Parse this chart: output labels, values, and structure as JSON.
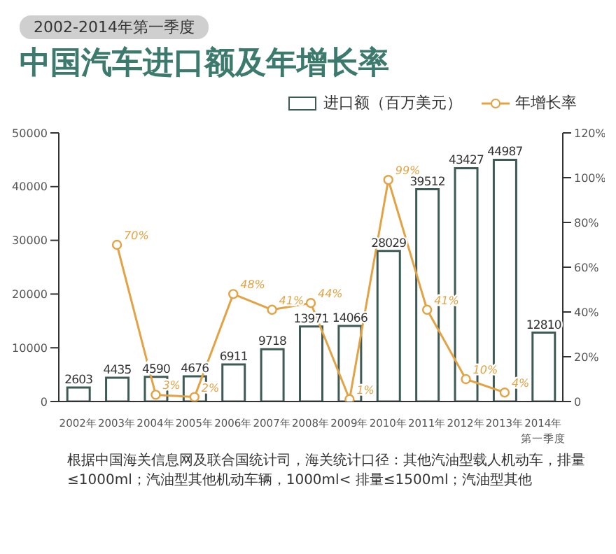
{
  "chart_data": {
    "type": "bar",
    "title": "中国汽车进口额及年增长率",
    "subtitle": "2002-2014年第一季度",
    "categories": [
      "2002年",
      "2003年",
      "2004年",
      "2005年",
      "2006年",
      "2007年",
      "2008年",
      "2009年",
      "2010年",
      "2011年",
      "2012年",
      "2013年",
      "2014年第一季度"
    ],
    "series": [
      {
        "name": "进口额（百万美元）",
        "color": "#3d5a55",
        "values": [
          2603,
          4435,
          4590,
          4676,
          6911,
          9718,
          13971,
          14066,
          28029,
          39512,
          43427,
          44987,
          12810
        ],
        "value_labels": [
          "2603",
          "4435",
          "4590",
          "4676",
          "6911",
          "9718",
          "13971",
          "14066",
          "28029",
          "39512",
          "43427",
          "44987",
          "12810"
        ]
      },
      {
        "name": "年增长率",
        "type": "line",
        "axis": "y2",
        "color": "#e3a344",
        "values": [
          null,
          70,
          3,
          2,
          48,
          41,
          44,
          1,
          99,
          41,
          10,
          4,
          null
        ],
        "value_labels": [
          null,
          "70%",
          "3%",
          "2%",
          "48%",
          "41%",
          "44%",
          "1%",
          "99%",
          "41%",
          "10%",
          "4%",
          null
        ]
      }
    ],
    "ylim": [
      0,
      50000
    ],
    "yticks": [
      0,
      10000,
      20000,
      30000,
      40000,
      50000
    ],
    "y2lim": [
      0,
      120
    ],
    "y2ticks": [
      0,
      {
        "value": 20,
        "label": "20%"
      },
      {
        "value": 40,
        "label": "40%"
      },
      {
        "value": 60,
        "label": "60%"
      },
      {
        "value": 80,
        "label": "80%"
      },
      {
        "value": 100,
        "label": "100%"
      },
      {
        "value": 120,
        "label": "120%"
      }
    ],
    "marker": "circle",
    "grid": false,
    "legend": "top right",
    "annotations": [
      "根据中国海关信息网及联合国统计司，海关统计口径：其他汽油型载人机动车，排量≤1000ml；汽油型其他机动车辆，1000ml< 排量≤1500ml；汽油型其他"
    ]
  }
}
